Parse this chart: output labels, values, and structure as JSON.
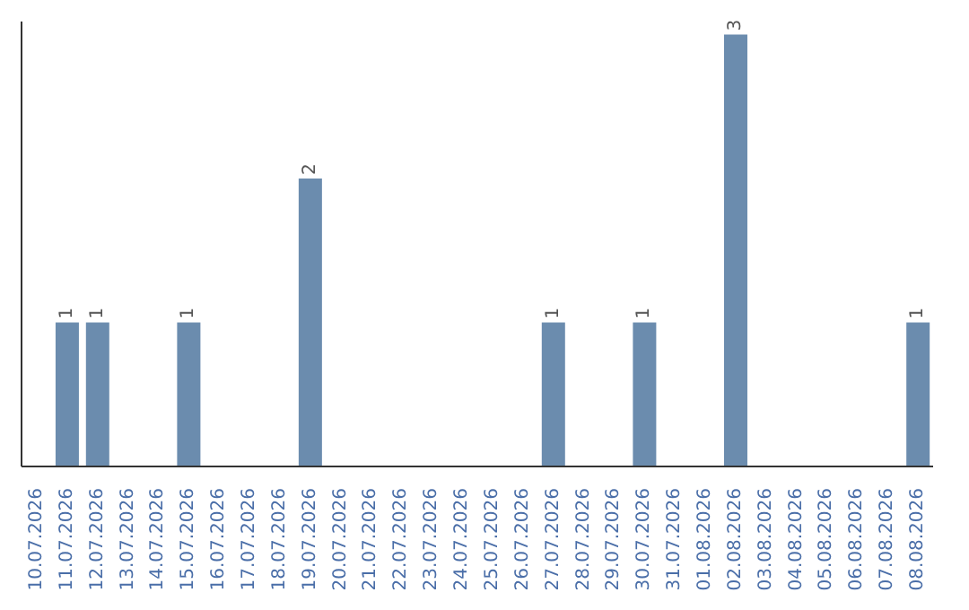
{
  "chart_data": {
    "type": "bar",
    "categories": [
      "10.07.2026",
      "11.07.2026",
      "12.07.2026",
      "13.07.2026",
      "14.07.2026",
      "15.07.2026",
      "16.07.2026",
      "17.07.2026",
      "18.07.2026",
      "19.07.2026",
      "20.07.2026",
      "21.07.2026",
      "22.07.2026",
      "23.07.2026",
      "24.07.2026",
      "25.07.2026",
      "26.07.2026",
      "27.07.2026",
      "28.07.2026",
      "29.07.2026",
      "30.07.2026",
      "31.07.2026",
      "01.08.2026",
      "02.08.2026",
      "03.08.2026",
      "04.08.2026",
      "05.08.2026",
      "06.08.2026",
      "07.08.2026",
      "08.08.2026"
    ],
    "values": [
      0,
      1,
      1,
      0,
      0,
      1,
      0,
      0,
      0,
      2,
      0,
      0,
      0,
      0,
      0,
      0,
      0,
      1,
      0,
      0,
      1,
      0,
      0,
      3,
      0,
      0,
      0,
      0,
      0,
      1
    ],
    "value_labels": [
      null,
      "1",
      "1",
      null,
      null,
      "1",
      null,
      null,
      null,
      "2",
      null,
      null,
      null,
      null,
      null,
      null,
      null,
      "1",
      null,
      null,
      "1",
      null,
      null,
      "3",
      null,
      null,
      null,
      null,
      null,
      "1"
    ],
    "color": "#6b8cae"
  }
}
